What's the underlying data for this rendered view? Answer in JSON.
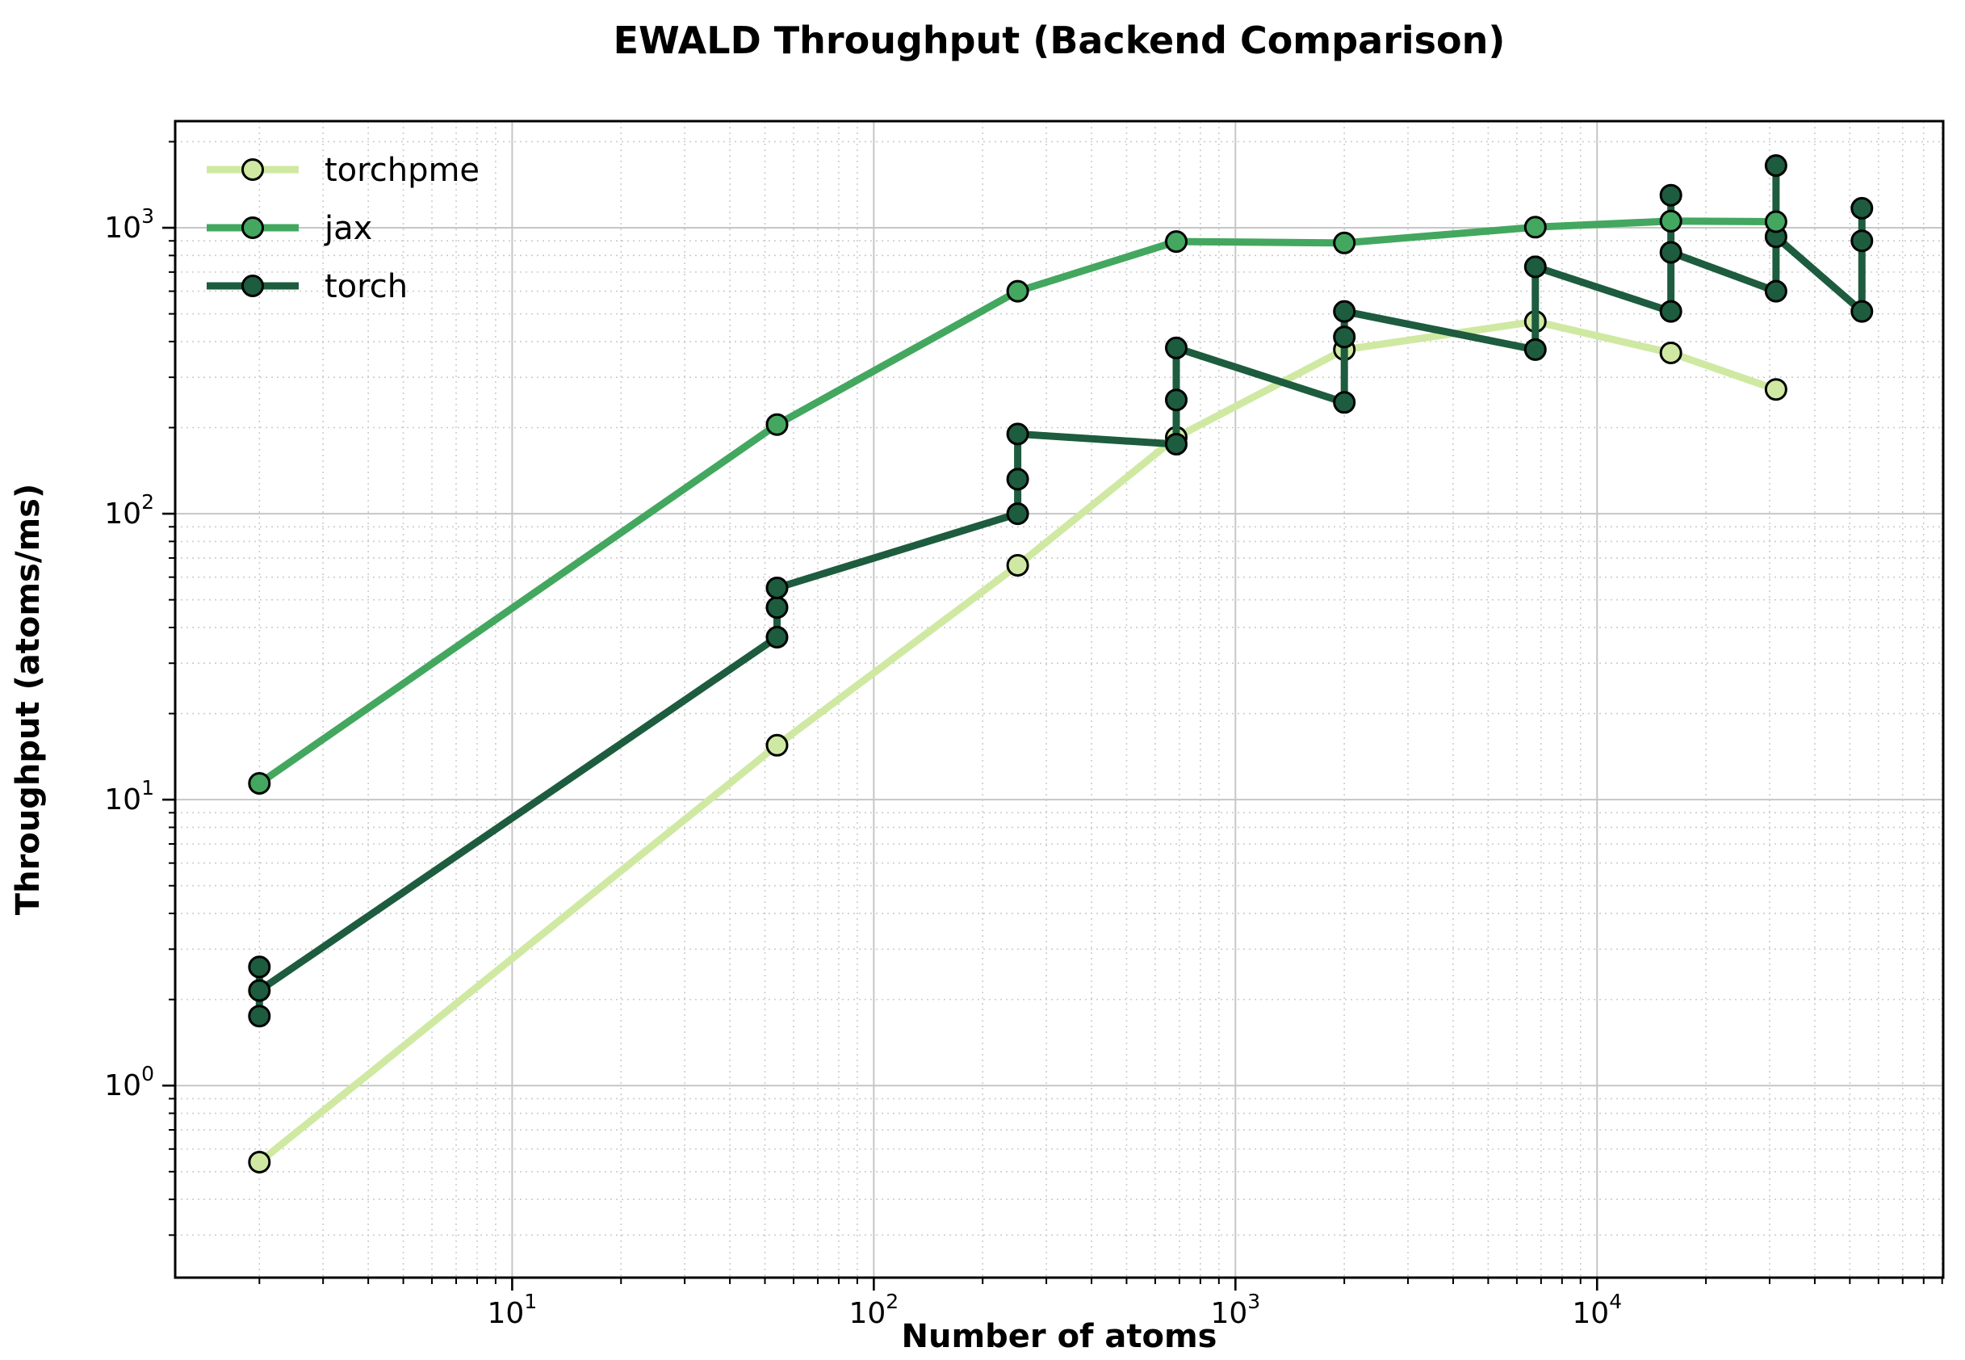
{
  "chart_data": {
    "type": "line",
    "title": "EWALD Throughput (Backend Comparison)",
    "xlabel": "Number of atoms",
    "ylabel": "Throughput (atoms/ms)",
    "xscale": "log",
    "yscale": "log",
    "xlim": [
      1.17,
      90600
    ],
    "ylim": [
      0.213,
      2360
    ],
    "x_major_ticks": [
      10,
      100,
      1000,
      10000
    ],
    "y_major_ticks": [
      1,
      10,
      100,
      1000
    ],
    "grid": {
      "major": "solid",
      "minor": "dotted",
      "major_color": "#c6c6c6",
      "minor_color": "#cccccc"
    },
    "legend": {
      "position": "upper-left",
      "frame": false
    },
    "series": [
      {
        "name": "torchpme",
        "color": "#cfe9a2",
        "zorder": 1,
        "points": [
          [
            2,
            0.54
          ],
          [
            54,
            15.5
          ],
          [
            250,
            66
          ],
          [
            686,
            185
          ],
          [
            2000,
            375
          ],
          [
            6750,
            470
          ],
          [
            16000,
            365
          ],
          [
            31250,
            272
          ]
        ]
      },
      {
        "name": "jax",
        "color": "#43a75f",
        "zorder": 3,
        "points": [
          [
            2,
            11.4
          ],
          [
            54,
            205
          ],
          [
            250,
            600
          ],
          [
            686,
            895
          ],
          [
            2000,
            885
          ],
          [
            6750,
            1005
          ],
          [
            16000,
            1055
          ],
          [
            31250,
            1050
          ]
        ]
      },
      {
        "name": "torch",
        "color": "#1d5c3e",
        "zorder": 2,
        "points": [
          [
            2,
            2.6
          ],
          [
            2,
            1.75
          ],
          [
            2,
            2.15
          ],
          [
            54,
            37
          ],
          [
            54,
            47
          ],
          [
            54,
            55
          ],
          [
            250,
            100
          ],
          [
            250,
            132
          ],
          [
            250,
            190
          ],
          [
            686,
            175
          ],
          [
            686,
            250
          ],
          [
            686,
            380
          ],
          [
            2000,
            245
          ],
          [
            2000,
            415
          ],
          [
            2000,
            510
          ],
          [
            6750,
            375
          ],
          [
            6750,
            730
          ],
          [
            16000,
            510
          ],
          [
            16000,
            1300
          ],
          [
            16000,
            820
          ],
          [
            31250,
            600
          ],
          [
            31250,
            1650
          ],
          [
            31250,
            930
          ],
          [
            54000,
            510
          ],
          [
            54000,
            1170
          ],
          [
            54000,
            900
          ]
        ]
      }
    ],
    "style": {
      "line_width": 9,
      "marker_radius": 12.5,
      "marker_edge_color": "#000000",
      "marker_edge_width": 3,
      "frame_color": "#000000",
      "background": "#ffffff"
    }
  }
}
